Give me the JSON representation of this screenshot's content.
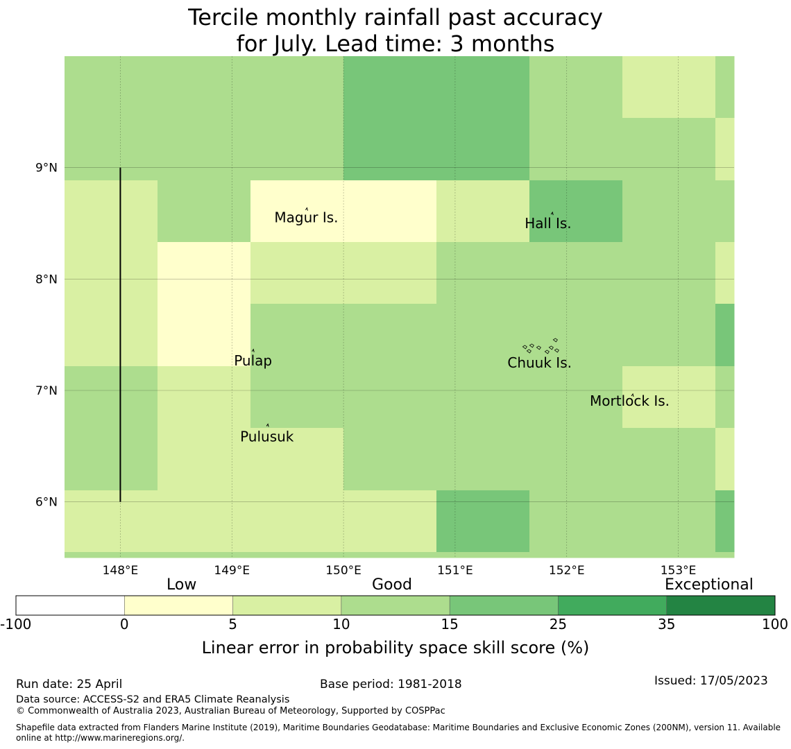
{
  "title": {
    "line1": "Tercile monthly rainfall past accuracy",
    "line2": "for July. Lead time: 3 months"
  },
  "map": {
    "lon_range": [
      147.5,
      153.5
    ],
    "lat_range": [
      5.5,
      10.0
    ],
    "lon_ticks": [
      148,
      149,
      150,
      151,
      152,
      153
    ],
    "lat_ticks": [
      6,
      7,
      8,
      9
    ],
    "lon_tick_labels": [
      "148°E",
      "149°E",
      "150°E",
      "151°E",
      "152°E",
      "153°E"
    ],
    "lat_tick_labels": [
      "6°N",
      "7°N",
      "8°N",
      "9°N"
    ],
    "gridlines": true,
    "cell_colors": [
      "#ffffff",
      "#ffffcc",
      "#d9f0a3",
      "#addd8e",
      "#78c679",
      "#41ab5d",
      "#238443"
    ],
    "skill_grid": [
      [
        3,
        3,
        3,
        4,
        4,
        3,
        2,
        3
      ],
      [
        3,
        3,
        3,
        4,
        4,
        3,
        3,
        2
      ],
      [
        2,
        3,
        1,
        1,
        2,
        4,
        3,
        3
      ],
      [
        2,
        1,
        2,
        2,
        3,
        3,
        3,
        2
      ],
      [
        2,
        1,
        3,
        3,
        3,
        3,
        3,
        4
      ],
      [
        3,
        2,
        3,
        3,
        3,
        3,
        2,
        3
      ],
      [
        3,
        2,
        2,
        3,
        3,
        3,
        3,
        2
      ],
      [
        2,
        2,
        2,
        2,
        4,
        3,
        3,
        4
      ],
      [
        3,
        3,
        3,
        3,
        3,
        3,
        3,
        3
      ]
    ],
    "islands": [
      {
        "name": "Magur Is.",
        "lon": 149.66,
        "lat": 8.62
      },
      {
        "name": "Hall Is.",
        "lon": 151.86,
        "lat": 8.58
      },
      {
        "name": "Pulap",
        "lon": 149.18,
        "lat": 7.35
      },
      {
        "name": "Chuuk Is.",
        "lon": 151.78,
        "lat": 7.38
      },
      {
        "name": "Mortlock Is.",
        "lon": 152.58,
        "lat": 6.95
      },
      {
        "name": "Pulusuk",
        "lon": 149.31,
        "lat": 6.68
      }
    ],
    "boundary_line": {
      "lon": 148.0,
      "lat_from": 6.0,
      "lat_to": 9.0
    }
  },
  "colorbar": {
    "colors": [
      "#ffffff",
      "#ffffcc",
      "#d9f0a3",
      "#addd8e",
      "#78c679",
      "#41ab5d",
      "#238443"
    ],
    "tick_labels": [
      "-100",
      "0",
      "5",
      "10",
      "15",
      "25",
      "35",
      "100"
    ],
    "categories": [
      "Low",
      "Good",
      "Exceptional"
    ],
    "label": "Linear error in probability space skill score (%)"
  },
  "footer": {
    "run_date": "Run date: 25 April",
    "base_period": "Base period: 1981-2018",
    "issued": "Issued: 17/05/2023",
    "data_source": "Data source: ACCESS-S2 and ERA5 Climate Reanalysis",
    "copyright": "© Commonwealth of Australia 2023, Australian Bureau of Meteorology, Supported by COSPPac",
    "shapefile_line1": "Shapefile data extracted from Flanders Marine Institute (2019), Maritime Boundaries Geodatabase: Maritime Boundaries and Exclusive Economic Zones (200NM), version 11. Available",
    "shapefile_line2": "online at http://www.marineregions.org/."
  }
}
